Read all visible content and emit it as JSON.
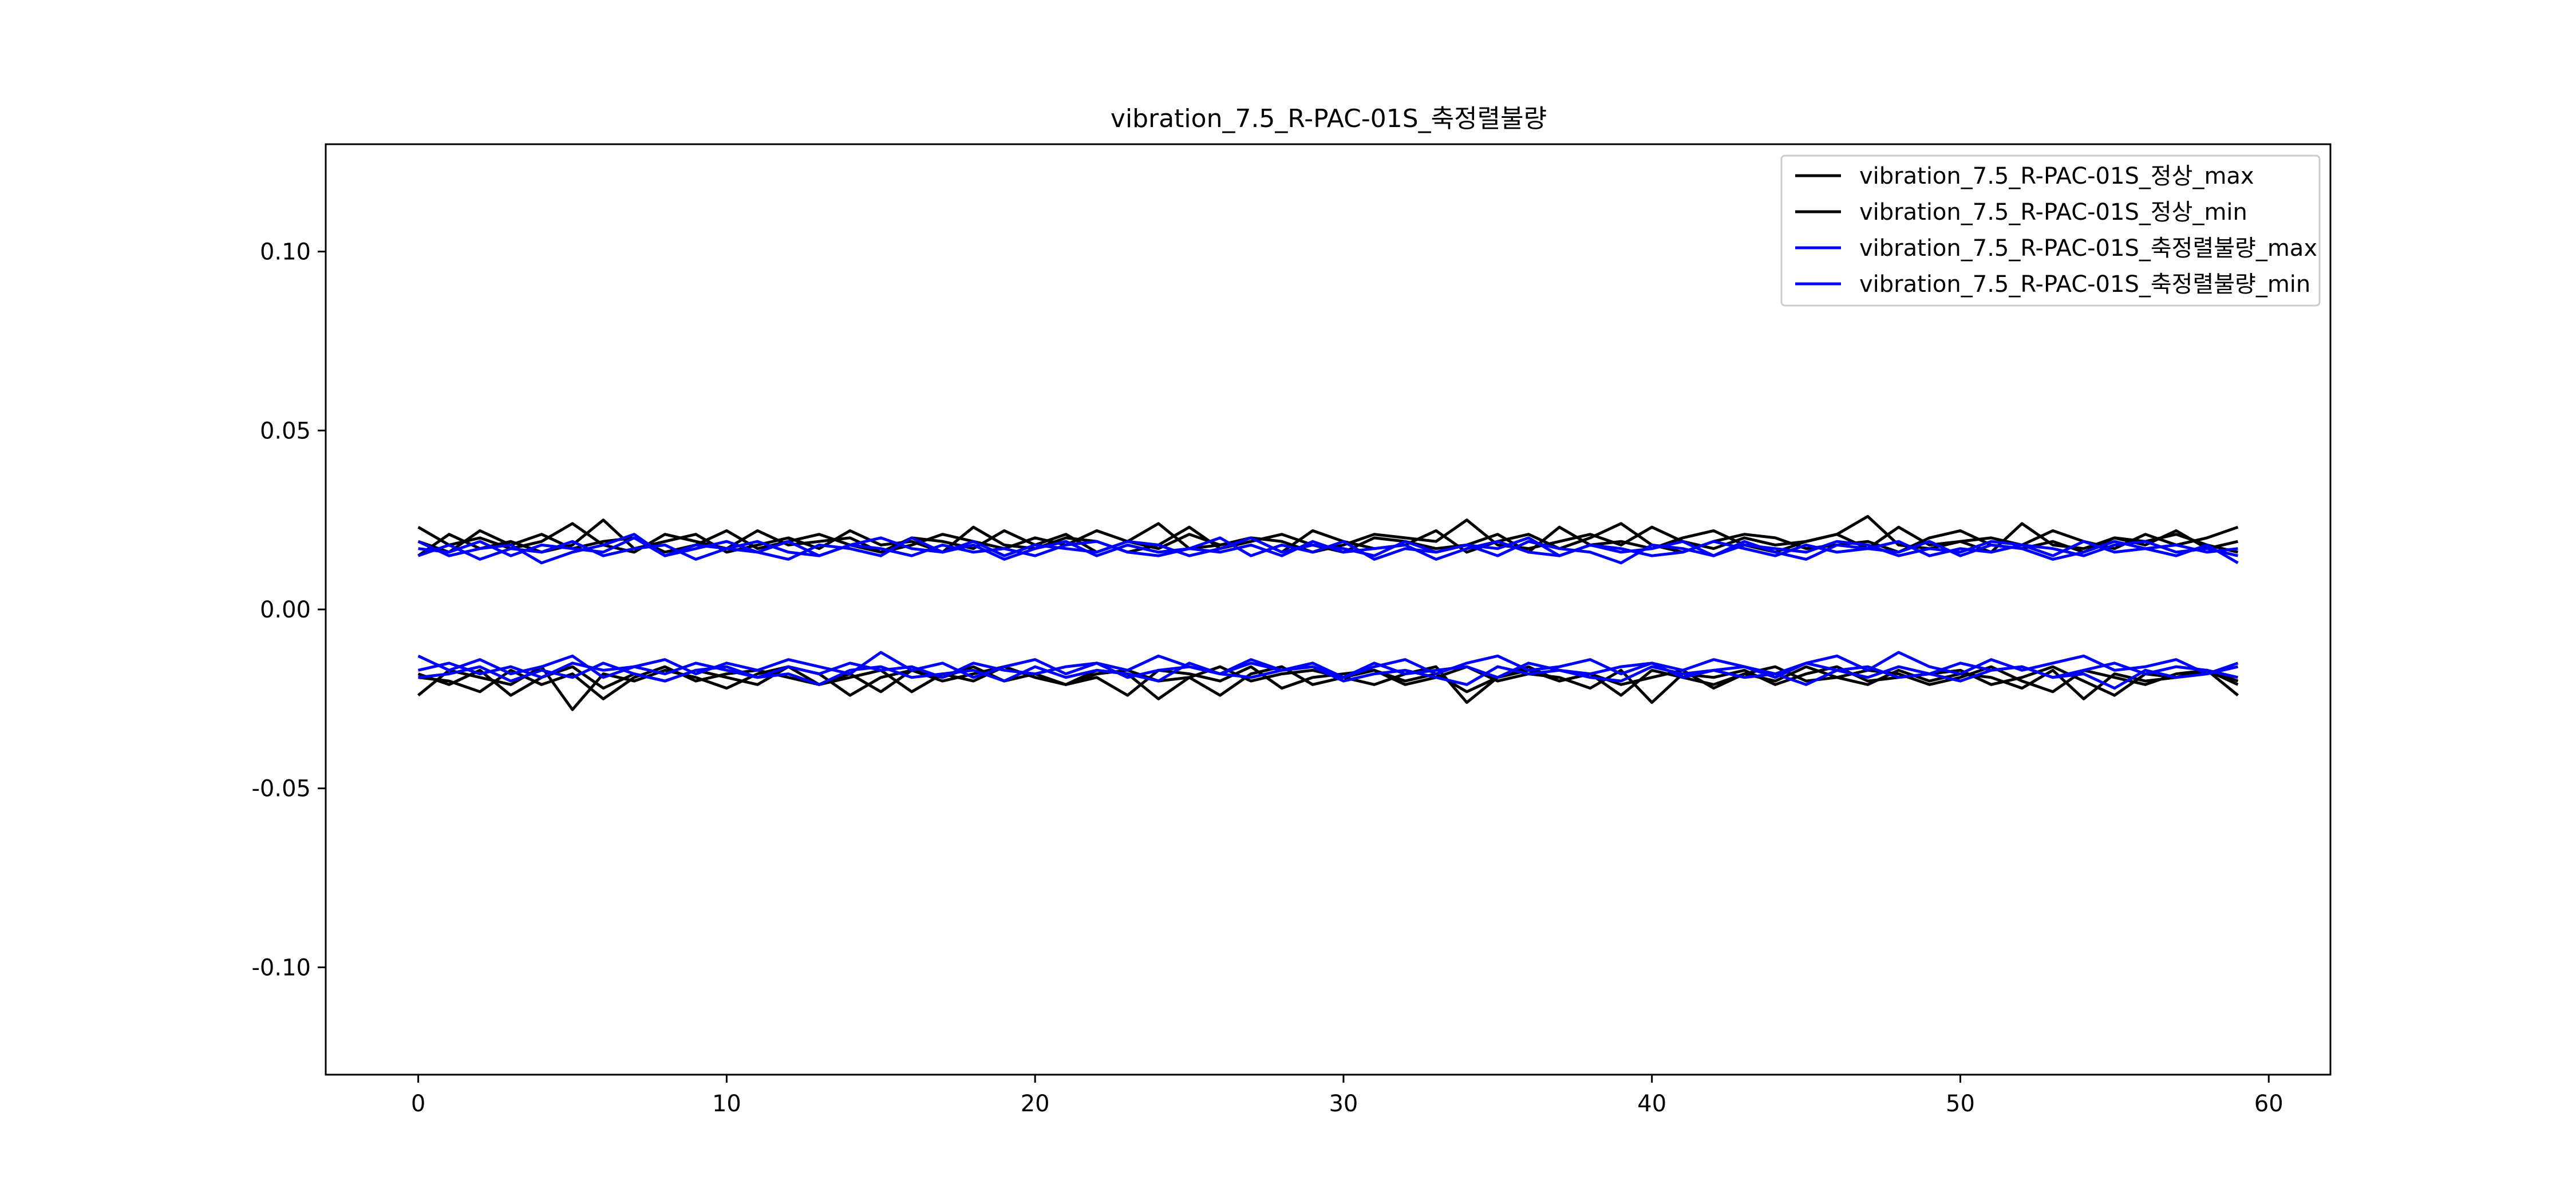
{
  "chart_data": {
    "type": "line",
    "title": "vibration_7.5_R-PAC-01S_축정렬불량",
    "xlabel": "",
    "ylabel": "",
    "xlim": [
      -3,
      62
    ],
    "ylim": [
      -0.13,
      0.13
    ],
    "x_ticks": [
      0,
      10,
      20,
      30,
      40,
      50,
      60
    ],
    "x_tick_labels": [
      "0",
      "10",
      "20",
      "30",
      "40",
      "50",
      "60"
    ],
    "y_ticks": [
      0.1,
      0.05,
      0.0,
      -0.05,
      -0.1
    ],
    "y_tick_labels": [
      "0.10",
      "0.05",
      "0.00",
      "-0.05",
      "-0.10"
    ],
    "grid": false,
    "legend_position": "top-right",
    "colors": {
      "normal": "#000000",
      "fault": "#0000ff"
    },
    "legend": [
      {
        "label": "vibration_7.5_R-PAC-01S_정상_max",
        "color": "#000000"
      },
      {
        "label": "vibration_7.5_R-PAC-01S_정상_min",
        "color": "#000000"
      },
      {
        "label": "vibration_7.5_R-PAC-01S_축정렬불량_max",
        "color": "#0000ff"
      },
      {
        "label": "vibration_7.5_R-PAC-01S_축정렬불량_min",
        "color": "#0000ff"
      }
    ],
    "series": [
      {
        "color": "#000000",
        "values": [
          0.023,
          0.018,
          0.02,
          0.017,
          0.019,
          0.024,
          0.018,
          0.016,
          0.021,
          0.019,
          0.017,
          0.022,
          0.018,
          0.019,
          0.02,
          0.016,
          0.018,
          0.021,
          0.019,
          0.017,
          0.02,
          0.018,
          0.022,
          0.019,
          0.017,
          0.021,
          0.018,
          0.02,
          0.019,
          0.016,
          0.018,
          0.021,
          0.02,
          0.019,
          0.025,
          0.018,
          0.017,
          0.019,
          0.021,
          0.018,
          0.023,
          0.019,
          0.017,
          0.02,
          0.018,
          0.019,
          0.021,
          0.026,
          0.018,
          0.017,
          0.019,
          0.02,
          0.018,
          0.022,
          0.019,
          0.017,
          0.021,
          0.018,
          0.02,
          0.023
        ]
      },
      {
        "color": "#000000",
        "values": [
          0.015,
          0.021,
          0.017,
          0.019,
          0.016,
          0.018,
          0.025,
          0.017,
          0.019,
          0.021,
          0.016,
          0.018,
          0.02,
          0.017,
          0.022,
          0.018,
          0.019,
          0.016,
          0.023,
          0.018,
          0.017,
          0.02,
          0.019,
          0.016,
          0.018,
          0.023,
          0.017,
          0.019,
          0.021,
          0.018,
          0.016,
          0.02,
          0.019,
          0.017,
          0.018,
          0.021,
          0.016,
          0.023,
          0.018,
          0.019,
          0.017,
          0.02,
          0.022,
          0.018,
          0.016,
          0.019,
          0.021,
          0.017,
          0.023,
          0.018,
          0.019,
          0.016,
          0.024,
          0.018,
          0.017,
          0.02,
          0.019,
          0.021,
          0.018,
          0.016
        ]
      },
      {
        "color": "#000000",
        "values": [
          0.019,
          0.016,
          0.022,
          0.018,
          0.021,
          0.017,
          0.019,
          0.02,
          0.016,
          0.018,
          0.022,
          0.017,
          0.019,
          0.021,
          0.018,
          0.016,
          0.02,
          0.019,
          0.017,
          0.022,
          0.018,
          0.021,
          0.016,
          0.019,
          0.024,
          0.017,
          0.018,
          0.02,
          0.016,
          0.022,
          0.019,
          0.017,
          0.018,
          0.022,
          0.016,
          0.019,
          0.021,
          0.017,
          0.02,
          0.024,
          0.018,
          0.016,
          0.019,
          0.021,
          0.02,
          0.017,
          0.018,
          0.019,
          0.016,
          0.02,
          0.022,
          0.018,
          0.017,
          0.019,
          0.016,
          0.02,
          0.018,
          0.022,
          0.017,
          0.019
        ]
      },
      {
        "color": "#000000",
        "values": [
          -0.018,
          -0.021,
          -0.017,
          -0.024,
          -0.019,
          -0.016,
          -0.022,
          -0.018,
          -0.02,
          -0.017,
          -0.019,
          -0.021,
          -0.016,
          -0.018,
          -0.024,
          -0.019,
          -0.017,
          -0.02,
          -0.018,
          -0.016,
          -0.019,
          -0.021,
          -0.017,
          -0.018,
          -0.025,
          -0.019,
          -0.016,
          -0.02,
          -0.018,
          -0.017,
          -0.019,
          -0.021,
          -0.018,
          -0.016,
          -0.026,
          -0.019,
          -0.017,
          -0.02,
          -0.018,
          -0.024,
          -0.017,
          -0.019,
          -0.021,
          -0.018,
          -0.016,
          -0.02,
          -0.019,
          -0.017,
          -0.018,
          -0.021,
          -0.019,
          -0.016,
          -0.02,
          -0.023,
          -0.017,
          -0.019,
          -0.021,
          -0.018,
          -0.017,
          -0.024
        ]
      },
      {
        "color": "#000000",
        "values": [
          -0.024,
          -0.017,
          -0.019,
          -0.021,
          -0.016,
          -0.028,
          -0.018,
          -0.02,
          -0.017,
          -0.019,
          -0.022,
          -0.018,
          -0.016,
          -0.021,
          -0.019,
          -0.017,
          -0.023,
          -0.018,
          -0.02,
          -0.016,
          -0.019,
          -0.021,
          -0.018,
          -0.017,
          -0.02,
          -0.019,
          -0.024,
          -0.018,
          -0.016,
          -0.021,
          -0.019,
          -0.017,
          -0.02,
          -0.018,
          -0.023,
          -0.019,
          -0.016,
          -0.02,
          -0.018,
          -0.021,
          -0.019,
          -0.017,
          -0.022,
          -0.018,
          -0.02,
          -0.016,
          -0.019,
          -0.021,
          -0.017,
          -0.02,
          -0.018,
          -0.019,
          -0.022,
          -0.017,
          -0.025,
          -0.018,
          -0.02,
          -0.019,
          -0.017,
          -0.02
        ]
      },
      {
        "color": "#000000",
        "values": [
          -0.019,
          -0.02,
          -0.023,
          -0.017,
          -0.021,
          -0.018,
          -0.025,
          -0.019,
          -0.016,
          -0.02,
          -0.018,
          -0.017,
          -0.019,
          -0.021,
          -0.018,
          -0.023,
          -0.017,
          -0.019,
          -0.016,
          -0.02,
          -0.018,
          -0.021,
          -0.019,
          -0.024,
          -0.017,
          -0.018,
          -0.02,
          -0.016,
          -0.022,
          -0.019,
          -0.018,
          -0.017,
          -0.021,
          -0.019,
          -0.016,
          -0.02,
          -0.018,
          -0.019,
          -0.022,
          -0.017,
          -0.026,
          -0.018,
          -0.019,
          -0.017,
          -0.021,
          -0.018,
          -0.016,
          -0.02,
          -0.019,
          -0.018,
          -0.017,
          -0.021,
          -0.019,
          -0.016,
          -0.02,
          -0.024,
          -0.018,
          -0.019,
          -0.017,
          -0.021
        ]
      },
      {
        "color": "#0000ff",
        "values": [
          0.017,
          0.016,
          0.019,
          0.015,
          0.018,
          0.017,
          0.016,
          0.02,
          0.015,
          0.018,
          0.017,
          0.019,
          0.016,
          0.015,
          0.018,
          0.02,
          0.017,
          0.016,
          0.019,
          0.015,
          0.018,
          0.017,
          0.016,
          0.019,
          0.018,
          0.015,
          0.017,
          0.02,
          0.016,
          0.018,
          0.017,
          0.015,
          0.019,
          0.016,
          0.018,
          0.017,
          0.02,
          0.015,
          0.018,
          0.016,
          0.017,
          0.019,
          0.015,
          0.018,
          0.017,
          0.016,
          0.019,
          0.018,
          0.015,
          0.017,
          0.016,
          0.019,
          0.018,
          0.017,
          0.015,
          0.018,
          0.019,
          0.016,
          0.017,
          0.015
        ]
      },
      {
        "color": "#0000ff",
        "values": [
          0.019,
          0.015,
          0.017,
          0.018,
          0.013,
          0.016,
          0.018,
          0.021,
          0.015,
          0.017,
          0.019,
          0.016,
          0.014,
          0.018,
          0.017,
          0.015,
          0.02,
          0.016,
          0.018,
          0.014,
          0.017,
          0.019,
          0.015,
          0.018,
          0.016,
          0.017,
          0.02,
          0.015,
          0.018,
          0.016,
          0.019,
          0.014,
          0.017,
          0.016,
          0.018,
          0.015,
          0.019,
          0.017,
          0.016,
          0.013,
          0.018,
          0.017,
          0.015,
          0.019,
          0.016,
          0.014,
          0.018,
          0.017,
          0.016,
          0.019,
          0.015,
          0.018,
          0.017,
          0.014,
          0.016,
          0.019,
          0.017,
          0.015,
          0.018,
          0.013
        ]
      },
      {
        "color": "#0000ff",
        "values": [
          0.015,
          0.018,
          0.014,
          0.017,
          0.016,
          0.019,
          0.015,
          0.017,
          0.018,
          0.014,
          0.017,
          0.016,
          0.019,
          0.015,
          0.018,
          0.017,
          0.015,
          0.018,
          0.016,
          0.017,
          0.015,
          0.018,
          0.019,
          0.016,
          0.015,
          0.017,
          0.016,
          0.018,
          0.015,
          0.019,
          0.016,
          0.017,
          0.018,
          0.014,
          0.017,
          0.019,
          0.016,
          0.015,
          0.018,
          0.017,
          0.015,
          0.016,
          0.019,
          0.017,
          0.015,
          0.018,
          0.016,
          0.017,
          0.019,
          0.015,
          0.017,
          0.016,
          0.018,
          0.015,
          0.019,
          0.016,
          0.017,
          0.018,
          0.016,
          0.017
        ]
      },
      {
        "color": "#0000ff",
        "values": [
          -0.017,
          -0.015,
          -0.018,
          -0.016,
          -0.019,
          -0.015,
          -0.017,
          -0.016,
          -0.018,
          -0.015,
          -0.017,
          -0.019,
          -0.016,
          -0.018,
          -0.015,
          -0.017,
          -0.016,
          -0.019,
          -0.015,
          -0.017,
          -0.018,
          -0.016,
          -0.015,
          -0.019,
          -0.017,
          -0.016,
          -0.018,
          -0.015,
          -0.017,
          -0.016,
          -0.019,
          -0.015,
          -0.018,
          -0.017,
          -0.016,
          -0.019,
          -0.015,
          -0.017,
          -0.018,
          -0.016,
          -0.015,
          -0.019,
          -0.017,
          -0.016,
          -0.018,
          -0.015,
          -0.017,
          -0.019,
          -0.016,
          -0.018,
          -0.015,
          -0.017,
          -0.016,
          -0.019,
          -0.017,
          -0.015,
          -0.018,
          -0.016,
          -0.017,
          -0.019
        ]
      },
      {
        "color": "#0000ff",
        "values": [
          -0.013,
          -0.017,
          -0.014,
          -0.018,
          -0.016,
          -0.013,
          -0.019,
          -0.016,
          -0.014,
          -0.018,
          -0.015,
          -0.017,
          -0.014,
          -0.016,
          -0.018,
          -0.012,
          -0.017,
          -0.015,
          -0.019,
          -0.016,
          -0.014,
          -0.018,
          -0.015,
          -0.017,
          -0.013,
          -0.016,
          -0.018,
          -0.014,
          -0.017,
          -0.015,
          -0.019,
          -0.016,
          -0.014,
          -0.018,
          -0.015,
          -0.013,
          -0.017,
          -0.016,
          -0.014,
          -0.018,
          -0.015,
          -0.017,
          -0.014,
          -0.016,
          -0.019,
          -0.015,
          -0.013,
          -0.017,
          -0.012,
          -0.016,
          -0.018,
          -0.014,
          -0.017,
          -0.015,
          -0.013,
          -0.017,
          -0.016,
          -0.014,
          -0.018,
          -0.015
        ]
      },
      {
        "color": "#0000ff",
        "values": [
          -0.019,
          -0.018,
          -0.016,
          -0.02,
          -0.017,
          -0.019,
          -0.015,
          -0.018,
          -0.02,
          -0.017,
          -0.016,
          -0.019,
          -0.018,
          -0.021,
          -0.017,
          -0.016,
          -0.019,
          -0.018,
          -0.017,
          -0.02,
          -0.016,
          -0.019,
          -0.017,
          -0.018,
          -0.02,
          -0.015,
          -0.018,
          -0.019,
          -0.017,
          -0.016,
          -0.02,
          -0.018,
          -0.017,
          -0.019,
          -0.021,
          -0.016,
          -0.018,
          -0.017,
          -0.019,
          -0.02,
          -0.016,
          -0.018,
          -0.017,
          -0.019,
          -0.018,
          -0.021,
          -0.017,
          -0.016,
          -0.019,
          -0.018,
          -0.02,
          -0.017,
          -0.016,
          -0.019,
          -0.018,
          -0.022,
          -0.017,
          -0.019,
          -0.018,
          -0.016
        ]
      }
    ]
  }
}
